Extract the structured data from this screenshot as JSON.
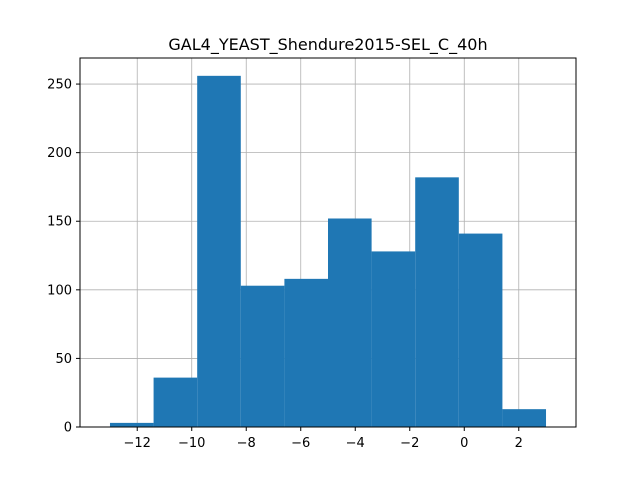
{
  "chart_data": {
    "type": "bar",
    "subtype": "histogram",
    "title": "GAL4_YEAST_Shendure2015-SEL_C_40h",
    "xlabel": "",
    "ylabel": "",
    "bin_edges": [
      -13.0,
      -11.4,
      -9.8,
      -8.2,
      -6.6,
      -5.0,
      -3.4,
      -1.8,
      -0.2,
      1.4,
      3.0
    ],
    "values": [
      3,
      36,
      256,
      103,
      108,
      152,
      128,
      182,
      141,
      13
    ],
    "xlim": [
      -14.1,
      4.1
    ],
    "ylim": [
      0,
      269
    ],
    "x_ticks": [
      -12,
      -10,
      -8,
      -6,
      -4,
      -2,
      0,
      2
    ],
    "x_tick_labels": [
      "−12",
      "−10",
      "−8",
      "−6",
      "−4",
      "−2",
      "0",
      "2"
    ],
    "y_ticks": [
      0,
      50,
      100,
      150,
      200,
      250
    ],
    "y_tick_labels": [
      "0",
      "50",
      "100",
      "150",
      "200",
      "250"
    ],
    "grid": true,
    "bar_color": "#1f77b4",
    "grid_color": "#b0b0b0"
  }
}
